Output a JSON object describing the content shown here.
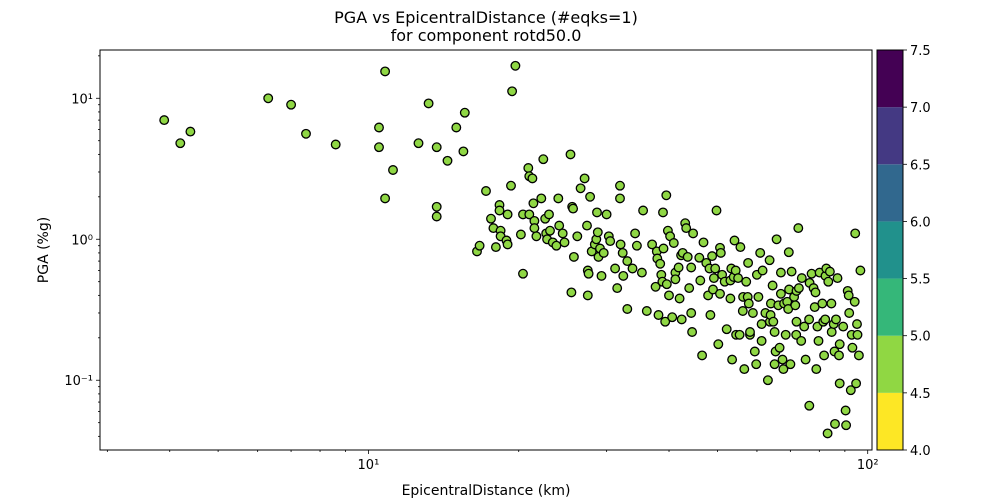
{
  "chart_data": {
    "type": "scatter",
    "title": "PGA vs EpicentralDistance (#eqks=1)",
    "subtitle": "for component rotd50.0",
    "xlabel": "EpicentralDistance (km)",
    "ylabel": "PGA (%g)",
    "xscale": "log",
    "yscale": "log",
    "xlim": [
      2.9,
      102
    ],
    "ylim": [
      0.032,
      22
    ],
    "x_ticks": [
      10,
      100
    ],
    "x_tick_labels": [
      "10¹",
      "10²"
    ],
    "y_ticks": [
      0.1,
      1,
      10
    ],
    "y_tick_labels": [
      "10⁻¹",
      "10⁰",
      "10¹"
    ],
    "marker_color": "#8fd744",
    "marker_edge": "#000000",
    "colorbar": {
      "min": 4.0,
      "max": 7.5,
      "ticks": [
        "4.0",
        "4.5",
        "5.0",
        "5.5",
        "6.0",
        "6.5",
        "7.0",
        "7.5"
      ],
      "colors": [
        "#fde725",
        "#90d743",
        "#35b779",
        "#21918c",
        "#31688e",
        "#443983",
        "#440154"
      ]
    },
    "points": [
      [
        3.9,
        7.0
      ],
      [
        4.2,
        4.8
      ],
      [
        4.4,
        5.8
      ],
      [
        6.3,
        10.0
      ],
      [
        7.0,
        9.0
      ],
      [
        7.5,
        5.6
      ],
      [
        8.6,
        4.7
      ],
      [
        10.5,
        6.2
      ],
      [
        10.5,
        4.5
      ],
      [
        10.8,
        15.5
      ],
      [
        10.8,
        1.95
      ],
      [
        11.2,
        3.1
      ],
      [
        12.6,
        4.8
      ],
      [
        13.2,
        9.2
      ],
      [
        13.7,
        4.5
      ],
      [
        13.7,
        1.7
      ],
      [
        13.7,
        1.45
      ],
      [
        14.4,
        3.6
      ],
      [
        15.0,
        6.2
      ],
      [
        15.5,
        4.2
      ],
      [
        15.6,
        7.9
      ],
      [
        16.5,
        0.82
      ],
      [
        16.7,
        0.9
      ],
      [
        17.2,
        2.2
      ],
      [
        17.6,
        1.4
      ],
      [
        17.8,
        1.2
      ],
      [
        18.0,
        0.88
      ],
      [
        18.3,
        1.75
      ],
      [
        18.3,
        1.6
      ],
      [
        18.4,
        1.15
      ],
      [
        18.4,
        1.05
      ],
      [
        18.9,
        0.98
      ],
      [
        19.0,
        1.5
      ],
      [
        19.0,
        0.92
      ],
      [
        19.3,
        2.4
      ],
      [
        19.4,
        11.2
      ],
      [
        19.7,
        17.0
      ],
      [
        20.2,
        1.08
      ],
      [
        20.4,
        1.5
      ],
      [
        20.4,
        0.57
      ],
      [
        20.9,
        3.2
      ],
      [
        21.0,
        2.8
      ],
      [
        21.0,
        1.5
      ],
      [
        21.3,
        2.7
      ],
      [
        21.4,
        1.8
      ],
      [
        21.5,
        1.35
      ],
      [
        21.5,
        1.2
      ],
      [
        21.7,
        1.05
      ],
      [
        22.2,
        1.95
      ],
      [
        22.4,
        3.7
      ],
      [
        22.6,
        1.4
      ],
      [
        22.7,
        1.1
      ],
      [
        22.8,
        1.0
      ],
      [
        23.0,
        1.5
      ],
      [
        23.1,
        1.15
      ],
      [
        23.4,
        0.95
      ],
      [
        23.8,
        0.9
      ],
      [
        24.0,
        1.95
      ],
      [
        24.1,
        1.25
      ],
      [
        24.5,
        1.1
      ],
      [
        24.7,
        0.95
      ],
      [
        25.4,
        4.0
      ],
      [
        25.5,
        0.42
      ],
      [
        25.6,
        1.7
      ],
      [
        25.7,
        1.65
      ],
      [
        25.8,
        0.75
      ],
      [
        26.2,
        1.05
      ],
      [
        26.6,
        2.3
      ],
      [
        27.1,
        2.7
      ],
      [
        27.4,
        1.25
      ],
      [
        27.5,
        0.6
      ],
      [
        27.5,
        0.4
      ],
      [
        27.6,
        0.57
      ],
      [
        27.8,
        2.0
      ],
      [
        28.0,
        0.82
      ],
      [
        28.4,
        0.92
      ],
      [
        28.6,
        1.0
      ],
      [
        28.7,
        1.55
      ],
      [
        28.8,
        1.12
      ],
      [
        28.9,
        0.75
      ],
      [
        29.1,
        0.86
      ],
      [
        29.3,
        0.55
      ],
      [
        29.6,
        0.8
      ],
      [
        30.0,
        1.5
      ],
      [
        30.3,
        1.05
      ],
      [
        30.5,
        0.97
      ],
      [
        31.2,
        0.62
      ],
      [
        31.5,
        0.45
      ],
      [
        31.9,
        2.4
      ],
      [
        31.9,
        1.95
      ],
      [
        32.0,
        0.92
      ],
      [
        32.3,
        0.8
      ],
      [
        32.4,
        0.55
      ],
      [
        33.0,
        0.7
      ],
      [
        33.0,
        0.32
      ],
      [
        33.8,
        0.62
      ],
      [
        34.2,
        1.1
      ],
      [
        34.5,
        0.9
      ],
      [
        35.3,
        0.58
      ],
      [
        35.5,
        1.6
      ],
      [
        36.1,
        0.31
      ],
      [
        37.0,
        0.92
      ],
      [
        37.6,
        0.46
      ],
      [
        37.8,
        0.82
      ],
      [
        37.9,
        0.73
      ],
      [
        38.1,
        0.29
      ],
      [
        38.4,
        0.67
      ],
      [
        38.6,
        0.56
      ],
      [
        38.8,
        0.5
      ],
      [
        38.9,
        1.55
      ],
      [
        39.0,
        0.86
      ],
      [
        39.3,
        0.26
      ],
      [
        39.5,
        2.05
      ],
      [
        39.6,
        0.48
      ],
      [
        39.8,
        1.15
      ],
      [
        40.0,
        0.4
      ],
      [
        40.2,
        1.05
      ],
      [
        40.6,
        0.28
      ],
      [
        40.9,
        0.94
      ],
      [
        41.2,
        0.58
      ],
      [
        41.2,
        0.52
      ],
      [
        41.8,
        0.63
      ],
      [
        42.0,
        0.38
      ],
      [
        42.3,
        0.77
      ],
      [
        42.4,
        0.27
      ],
      [
        42.6,
        0.8
      ],
      [
        43.1,
        1.3
      ],
      [
        43.3,
        1.2
      ],
      [
        43.6,
        0.75
      ],
      [
        43.9,
        0.45
      ],
      [
        44.3,
        0.63
      ],
      [
        44.3,
        0.3
      ],
      [
        44.5,
        0.22
      ],
      [
        44.7,
        1.1
      ],
      [
        46.0,
        0.74
      ],
      [
        46.2,
        0.51
      ],
      [
        46.6,
        0.15
      ],
      [
        46.9,
        0.95
      ],
      [
        47.5,
        0.68
      ],
      [
        47.9,
        0.4
      ],
      [
        48.2,
        0.62
      ],
      [
        48.4,
        0.29
      ],
      [
        48.8,
        0.76
      ],
      [
        49.0,
        0.44
      ],
      [
        49.2,
        0.53
      ],
      [
        49.5,
        0.62
      ],
      [
        49.8,
        1.6
      ],
      [
        50.2,
        0.18
      ],
      [
        50.6,
        0.87
      ],
      [
        50.6,
        0.41
      ],
      [
        50.8,
        0.8
      ],
      [
        51.1,
        0.56
      ],
      [
        51.7,
        0.5
      ],
      [
        52.2,
        0.23
      ],
      [
        53.1,
        0.38
      ],
      [
        53.1,
        0.51
      ],
      [
        53.3,
        0.62
      ],
      [
        53.5,
        0.14
      ],
      [
        53.9,
        0.54
      ],
      [
        54.1,
        0.98
      ],
      [
        54.4,
        0.6
      ],
      [
        54.5,
        0.21
      ],
      [
        55.0,
        0.53
      ],
      [
        55.4,
        0.21
      ],
      [
        55.6,
        0.88
      ],
      [
        56.2,
        0.31
      ],
      [
        56.3,
        0.39
      ],
      [
        56.6,
        0.12
      ],
      [
        57.1,
        0.5
      ],
      [
        57.5,
        0.39
      ],
      [
        57.6,
        0.68
      ],
      [
        57.8,
        0.35
      ],
      [
        58.1,
        0.21
      ],
      [
        58.1,
        0.22
      ],
      [
        58.9,
        0.3
      ],
      [
        59.4,
        0.16
      ],
      [
        59.8,
        0.13
      ],
      [
        60.0,
        0.56
      ],
      [
        60.4,
        0.39
      ],
      [
        60.9,
        0.8
      ],
      [
        61.3,
        0.25
      ],
      [
        61.3,
        0.19
      ],
      [
        61.6,
        0.6
      ],
      [
        62.4,
        0.3
      ],
      [
        63.1,
        0.1
      ],
      [
        63.6,
        0.71
      ],
      [
        63.7,
        0.26
      ],
      [
        63.9,
        0.29
      ],
      [
        64.0,
        0.35
      ],
      [
        64.5,
        0.47
      ],
      [
        64.7,
        0.26
      ],
      [
        65.1,
        0.22
      ],
      [
        65.1,
        0.13
      ],
      [
        65.4,
        0.16
      ],
      [
        65.7,
        1.0
      ],
      [
        66.2,
        0.34
      ],
      [
        66.6,
        0.17
      ],
      [
        67.0,
        0.41
      ],
      [
        67.0,
        0.58
      ],
      [
        67.5,
        0.14
      ],
      [
        67.8,
        0.12
      ],
      [
        68.0,
        0.35
      ],
      [
        68.5,
        0.21
      ],
      [
        69.0,
        0.36
      ],
      [
        69.3,
        0.32
      ],
      [
        69.5,
        0.81
      ],
      [
        69.6,
        0.44
      ],
      [
        70.0,
        0.13
      ],
      [
        70.4,
        0.59
      ],
      [
        71.2,
        0.39
      ],
      [
        71.6,
        0.34
      ],
      [
        71.9,
        0.21
      ],
      [
        72.0,
        0.43
      ],
      [
        72.0,
        0.26
      ],
      [
        72.6,
        1.2
      ],
      [
        72.8,
        0.45
      ],
      [
        73.6,
        0.19
      ],
      [
        73.8,
        0.53
      ],
      [
        74.6,
        0.24
      ],
      [
        75.1,
        0.14
      ],
      [
        76.3,
        0.27
      ],
      [
        76.4,
        0.066
      ],
      [
        76.5,
        0.49
      ],
      [
        77.2,
        0.57
      ],
      [
        77.9,
        0.45
      ],
      [
        78.3,
        0.33
      ],
      [
        78.6,
        0.42
      ],
      [
        78.9,
        0.12
      ],
      [
        79.3,
        0.24
      ],
      [
        79.7,
        0.19
      ],
      [
        80.1,
        0.58
      ],
      [
        81.1,
        0.35
      ],
      [
        81.5,
        0.26
      ],
      [
        81.8,
        0.15
      ],
      [
        82.2,
        0.27
      ],
      [
        82.3,
        0.55
      ],
      [
        82.6,
        0.62
      ],
      [
        83.1,
        0.042
      ],
      [
        83.4,
        0.5
      ],
      [
        84.0,
        0.59
      ],
      [
        84.6,
        0.35
      ],
      [
        84.7,
        0.22
      ],
      [
        85.5,
        0.25
      ],
      [
        85.8,
        0.16
      ],
      [
        86.0,
        0.049
      ],
      [
        86.4,
        0.27
      ],
      [
        87.0,
        0.53
      ],
      [
        87.6,
        0.15
      ],
      [
        87.9,
        0.18
      ],
      [
        87.9,
        0.095
      ],
      [
        89.3,
        0.24
      ],
      [
        90.3,
        0.061
      ],
      [
        90.5,
        0.048
      ],
      [
        91.2,
        0.43
      ],
      [
        91.6,
        0.4
      ],
      [
        91.8,
        0.3
      ],
      [
        92.5,
        0.085
      ],
      [
        92.9,
        0.21
      ],
      [
        93.2,
        0.17
      ],
      [
        94.2,
        0.36
      ],
      [
        94.4,
        1.1
      ],
      [
        94.8,
        0.095
      ],
      [
        95.2,
        0.25
      ],
      [
        95.4,
        0.21
      ],
      [
        96.0,
        0.15
      ],
      [
        96.7,
        0.6
      ]
    ]
  }
}
